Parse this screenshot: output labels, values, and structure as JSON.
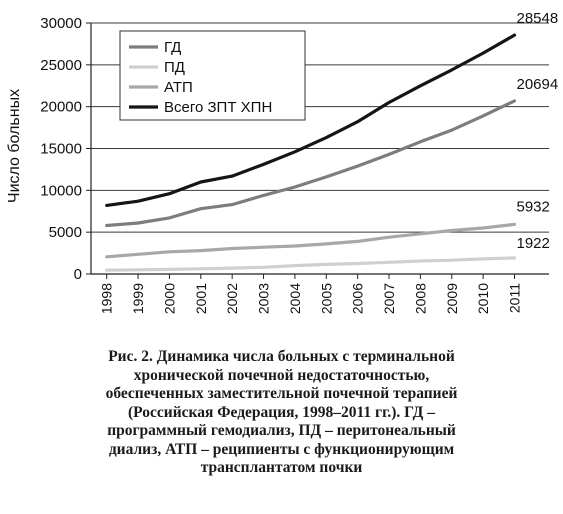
{
  "chart_data": {
    "type": "line",
    "ylabel": "Число больных",
    "xlabel": "",
    "x": [
      "1998",
      "1999",
      "2000",
      "2001",
      "2002",
      "2003",
      "2004",
      "2005",
      "2006",
      "2007",
      "2008",
      "2009",
      "2010",
      "2011"
    ],
    "ylim": [
      0,
      30000
    ],
    "yticks": [
      0,
      5000,
      10000,
      15000,
      20000,
      25000,
      30000
    ],
    "grid": "horizontal",
    "legend_position": "top-left",
    "series": [
      {
        "name": "ГД",
        "color": "#7d7d7d",
        "end_label": "20694",
        "values": [
          5800,
          6100,
          6700,
          7800,
          8300,
          9400,
          10400,
          11600,
          12900,
          14300,
          15800,
          17200,
          18900,
          20694
        ]
      },
      {
        "name": "ПД",
        "color": "#cfcfcf",
        "end_label": "1922",
        "values": [
          450,
          500,
          550,
          620,
          700,
          800,
          1000,
          1150,
          1250,
          1400,
          1550,
          1650,
          1800,
          1922
        ]
      },
      {
        "name": "АТП",
        "color": "#a8a8a8",
        "end_label": "5932",
        "values": [
          2050,
          2350,
          2650,
          2800,
          3050,
          3200,
          3350,
          3600,
          3900,
          4400,
          4800,
          5200,
          5500,
          5932
        ]
      },
      {
        "name": "Всего ЗПТ ХПН",
        "color": "#151515",
        "end_label": "28548",
        "values": [
          8200,
          8700,
          9600,
          11000,
          11700,
          13100,
          14600,
          16300,
          18200,
          20500,
          22500,
          24400,
          26400,
          28548
        ]
      }
    ]
  },
  "caption": "Рис. 2. Динамика числа больных с терминальной\nхронической почечной недостаточностью,\nобеспеченных заместительной почечной терапией\n(Российская Федерация, 1998–2011 гг.). ГД –\nпрограммный гемодиализ, ПД – перитонеальный\nдиализ, АТП – реципиенты с функционирующим\nтрансплантатом почки"
}
